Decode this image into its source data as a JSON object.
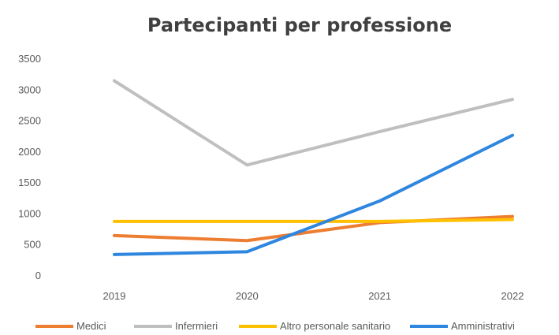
{
  "chart_data": {
    "type": "line",
    "title": "Partecipanti per professione",
    "xlabel": "",
    "ylabel": "",
    "categories": [
      "2019",
      "2020",
      "2021",
      "2022"
    ],
    "ylim": [
      0,
      3500
    ],
    "yticks": [
      0,
      500,
      1000,
      1500,
      2000,
      2500,
      3000,
      3500
    ],
    "grid": false,
    "legend_position": "bottom",
    "series": [
      {
        "name": "Medici",
        "color": "#ED7D31",
        "values": [
          650,
          570,
          860,
          960
        ]
      },
      {
        "name": "Infermieri",
        "color": "#BFBFBF",
        "values": [
          3150,
          1790,
          2330,
          2850
        ]
      },
      {
        "name": "Altro personale sanitario",
        "color": "#FFC000",
        "values": [
          880,
          880,
          880,
          910
        ]
      },
      {
        "name": "Amministrativi",
        "color": "#2E86DE",
        "values": [
          345,
          390,
          1210,
          2270
        ]
      }
    ]
  }
}
